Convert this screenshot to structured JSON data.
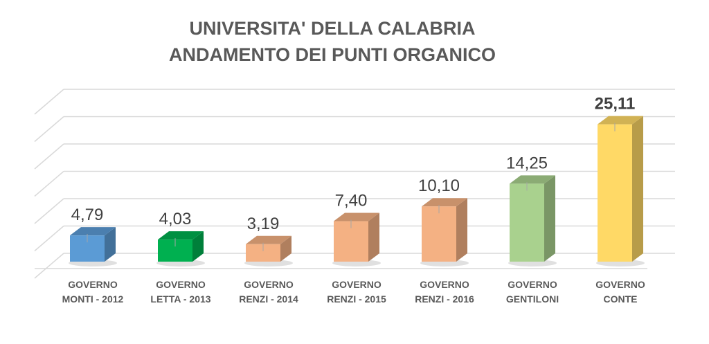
{
  "chart_data": {
    "type": "bar",
    "title_lines": [
      "UNIVERSITA' DELLA CALABRIA",
      "ANDAMENTO DEI PUNTI ORGANICO"
    ],
    "categories": [
      [
        "GOVERNO",
        "MONTI - 2012"
      ],
      [
        "GOVERNO",
        "LETTA - 2013"
      ],
      [
        "GOVERNO",
        "RENZI - 2014"
      ],
      [
        "GOVERNO",
        "RENZI - 2015"
      ],
      [
        "GOVERNO",
        "RENZI - 2016"
      ],
      [
        "GOVERNO",
        "GENTILONI"
      ],
      [
        "GOVERNO",
        "CONTE"
      ]
    ],
    "values": [
      4.79,
      4.03,
      3.19,
      7.4,
      10.1,
      14.25,
      25.11
    ],
    "value_labels": [
      "4,79",
      "4,03",
      "3,19",
      "7,40",
      "10,10",
      "14,25",
      "25,11"
    ],
    "bar_colors": [
      "#5b9bd5",
      "#00b050",
      "#f4b183",
      "#f4b183",
      "#f4b183",
      "#a9d18e",
      "#ffd966"
    ],
    "ylim": [
      0,
      30
    ],
    "grid": true,
    "style": "3d-column"
  }
}
